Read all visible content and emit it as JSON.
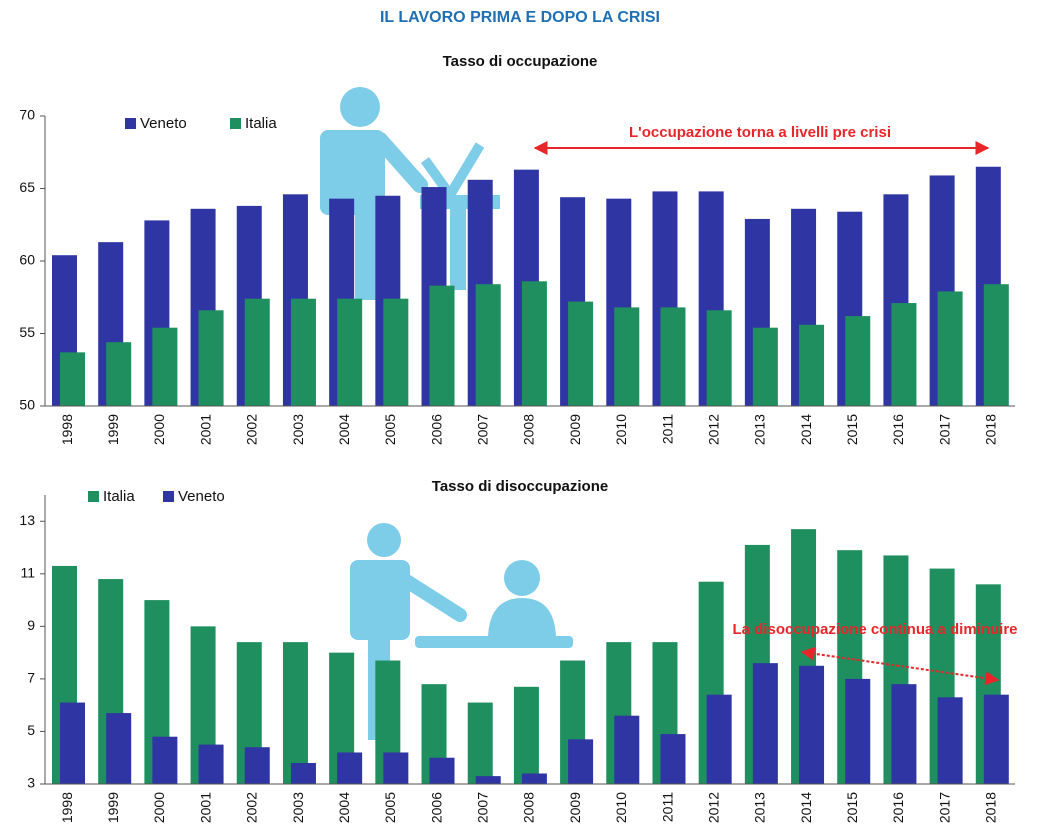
{
  "title": "IL LAVORO PRIMA E DOPO LA CRISI",
  "chart_data": [
    {
      "type": "bar",
      "title": "Tasso di occupazione",
      "categories": [
        "1998",
        "1999",
        "2000",
        "2001",
        "2002",
        "2003",
        "2004",
        "2005",
        "2006",
        "2007",
        "2008",
        "2009",
        "2010",
        "2011",
        "2012",
        "2013",
        "2014",
        "2015",
        "2016",
        "2017",
        "2018"
      ],
      "series": [
        {
          "name": "Veneto",
          "color": "#2f36a3",
          "values": [
            60.4,
            61.3,
            62.8,
            63.6,
            63.8,
            64.6,
            64.3,
            64.5,
            65.1,
            65.6,
            66.3,
            64.4,
            64.3,
            64.8,
            64.8,
            62.9,
            63.6,
            63.4,
            64.6,
            65.9,
            66.5
          ]
        },
        {
          "name": "Italia",
          "color": "#1f8f5f",
          "values": [
            53.7,
            54.4,
            55.4,
            56.6,
            57.4,
            57.4,
            57.4,
            57.4,
            58.3,
            58.4,
            58.6,
            57.2,
            56.8,
            56.8,
            56.6,
            55.4,
            55.6,
            56.2,
            57.1,
            57.9,
            58.4
          ]
        }
      ],
      "ylim": [
        50,
        70
      ],
      "yticks": [
        50,
        55,
        60,
        65,
        70
      ],
      "annotation": "L'occupazione torna a livelli pre crisi",
      "legend": "upper left"
    },
    {
      "type": "bar",
      "title": "Tasso di disoccupazione",
      "categories": [
        "1998",
        "1999",
        "2000",
        "2001",
        "2002",
        "2003",
        "2004",
        "2005",
        "2006",
        "2007",
        "2008",
        "2009",
        "2010",
        "2011",
        "2012",
        "2013",
        "2014",
        "2015",
        "2016",
        "2017",
        "2018"
      ],
      "series": [
        {
          "name": "Italia",
          "color": "#1f8f5f",
          "values": [
            11.3,
            10.8,
            10.0,
            9.0,
            8.4,
            8.4,
            8.0,
            7.7,
            6.8,
            6.1,
            6.7,
            7.7,
            8.4,
            8.4,
            10.7,
            12.1,
            12.7,
            11.9,
            11.7,
            11.2,
            10.6
          ]
        },
        {
          "name": "Veneto",
          "color": "#2f36a3",
          "values": [
            6.1,
            5.7,
            4.8,
            4.5,
            4.4,
            3.8,
            4.2,
            4.2,
            4.0,
            3.3,
            3.4,
            4.7,
            5.6,
            4.9,
            6.4,
            7.6,
            7.5,
            7.0,
            6.8,
            6.3,
            6.4
          ]
        }
      ],
      "ylim": [
        3,
        14
      ],
      "yticks": [
        3,
        5,
        7,
        9,
        11,
        13
      ],
      "annotation": "La disoccupazione continua a diminuire",
      "legend": "upper left"
    }
  ]
}
